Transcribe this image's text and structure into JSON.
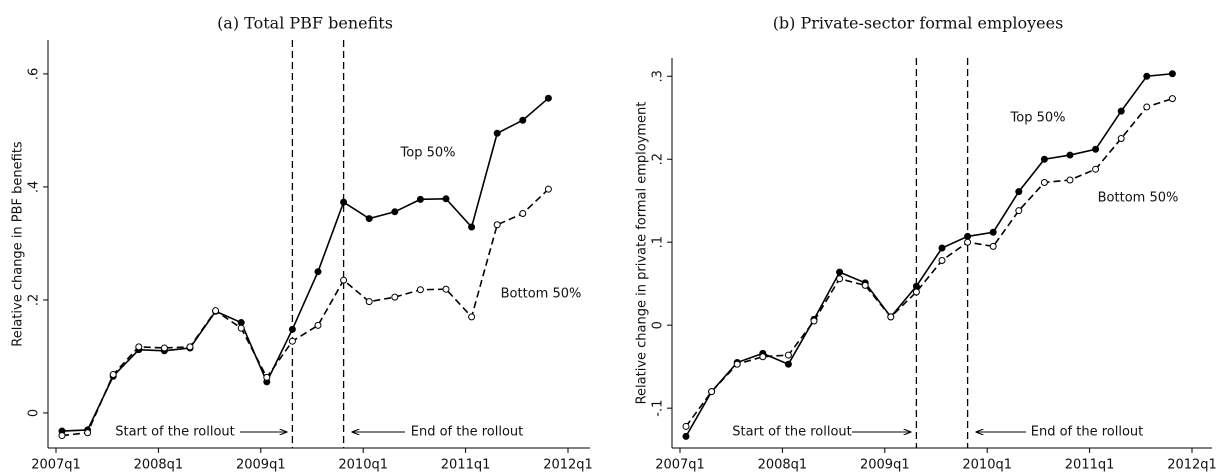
{
  "chart_data": [
    {
      "type": "line",
      "title": "(a) Total PBF benefits",
      "ylabel": "Relative change in PBF benefits",
      "categories": [
        "2007q1",
        null,
        null,
        null,
        "2008q1",
        null,
        null,
        null,
        "2009q1",
        null,
        null,
        null,
        "2010q1",
        null,
        null,
        null,
        "2011q1",
        null,
        null,
        null,
        "2012q1"
      ],
      "series": [
        {
          "name": "Top 50%",
          "color": "#000000",
          "dash": false,
          "marker": "filled",
          "values": [
            -0.032,
            -0.03,
            0.065,
            0.112,
            0.11,
            0.115,
            0.18,
            0.16,
            0.055,
            0.148,
            0.25,
            0.373,
            0.344,
            0.356,
            0.378,
            0.379,
            0.329,
            0.495,
            0.518,
            0.557,
            null
          ]
        },
        {
          "name": "Bottom 50%",
          "color": "#000000",
          "dash": true,
          "marker": "hollow",
          "values": [
            -0.04,
            -0.035,
            0.068,
            0.117,
            0.115,
            0.117,
            0.181,
            0.15,
            0.063,
            0.127,
            0.155,
            0.235,
            0.197,
            0.205,
            0.218,
            0.219,
            0.17,
            0.333,
            0.353,
            0.396,
            null
          ]
        }
      ],
      "vlines": [
        9,
        11
      ],
      "annotations": [
        "Start of the rollout",
        "End of the rollout"
      ],
      "ylim": [
        -0.062,
        0.66
      ],
      "yticks": [
        0,
        {
          "value": 0.2,
          "label": ".2"
        },
        {
          "value": 0.4,
          "label": ".4"
        },
        {
          "value": 0.6,
          "label": ".6"
        }
      ]
    },
    {
      "type": "line",
      "title": "(b) Private-sector formal employees",
      "ylabel": "Relative change in private formal employment",
      "categories": [
        "2007q1",
        null,
        null,
        null,
        "2008q1",
        null,
        null,
        null,
        "2009q1",
        null,
        null,
        null,
        "2010q1",
        null,
        null,
        null,
        "2011q1",
        null,
        null,
        null,
        "2012q1"
      ],
      "series": [
        {
          "name": "Top 50%",
          "color": "#000000",
          "dash": false,
          "marker": "filled",
          "values": [
            -0.134,
            -0.08,
            -0.045,
            -0.034,
            -0.047,
            0.007,
            0.064,
            0.051,
            0.01,
            0.047,
            0.093,
            0.107,
            0.112,
            0.161,
            0.2,
            0.205,
            0.212,
            0.258,
            0.3,
            0.303,
            null
          ]
        },
        {
          "name": "Bottom 50%",
          "color": "#000000",
          "dash": true,
          "marker": "hollow",
          "values": [
            -0.122,
            -0.08,
            -0.047,
            -0.038,
            -0.036,
            0.005,
            0.056,
            0.048,
            0.01,
            0.04,
            0.078,
            0.1,
            0.095,
            0.138,
            0.172,
            0.175,
            0.188,
            0.225,
            0.263,
            0.273,
            null
          ]
        }
      ],
      "vlines": [
        9,
        11
      ],
      "annotations": [
        "Start of the rollout",
        "End of the rollout"
      ],
      "ylim": [
        -0.148,
        0.322
      ],
      "yticks": [
        {
          "value": -0.1,
          "label": "-.1"
        },
        0,
        {
          "value": 0.1,
          "label": ".1"
        },
        {
          "value": 0.2,
          "label": ".2"
        },
        {
          "value": 0.3,
          "label": ".3"
        }
      ]
    }
  ]
}
